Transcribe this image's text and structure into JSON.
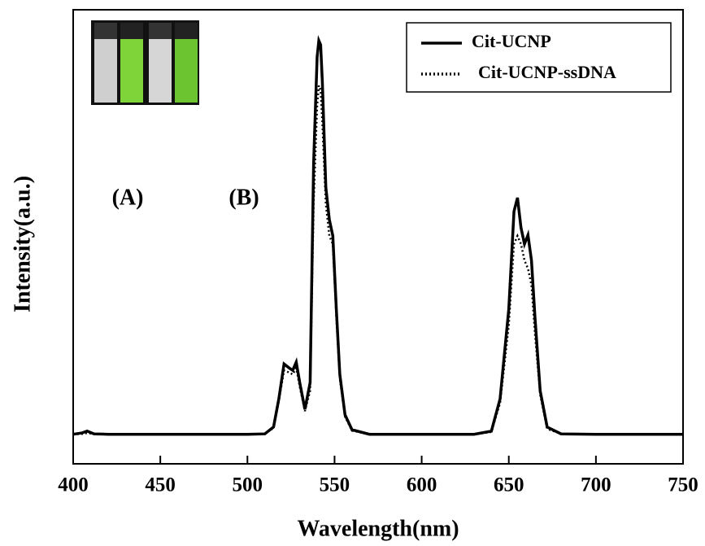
{
  "chart_data": {
    "type": "line",
    "x_label": "Wavelength(nm)",
    "y_label": "Intensity(a.u.)",
    "x": [
      400,
      405,
      408,
      412,
      420,
      450,
      500,
      510,
      515,
      518,
      521,
      524,
      526,
      528,
      530,
      533,
      536,
      538,
      540,
      541,
      542,
      543,
      545,
      547,
      549,
      551,
      553,
      556,
      560,
      570,
      600,
      630,
      640,
      645,
      650,
      653,
      655,
      657,
      659,
      661,
      663,
      665,
      668,
      672,
      680,
      700,
      750
    ],
    "series": [
      {
        "name": "Cit-UCNP",
        "color": "#000000",
        "dash": "solid",
        "values": [
          6.5,
          6.8,
          7.2,
          6.6,
          6.5,
          6.5,
          6.5,
          6.6,
          8.1,
          14.3,
          22.0,
          21.1,
          20.6,
          22.4,
          17.9,
          12.0,
          17.9,
          66.3,
          89.6,
          93.2,
          92.3,
          84.2,
          60.9,
          53.8,
          50.2,
          34.1,
          19.7,
          10.8,
          7.5,
          6.5,
          6.5,
          6.5,
          7.2,
          14.3,
          34.1,
          55.6,
          58.6,
          52.0,
          48.4,
          50.4,
          44.8,
          32.3,
          16.1,
          8.1,
          6.6,
          6.5,
          6.5
        ]
      },
      {
        "name": "Cit-UCNP-ssDNA",
        "color": "#000000",
        "dash": "dotted",
        "values": [
          6.5,
          6.6,
          6.8,
          6.6,
          6.5,
          6.5,
          6.5,
          6.6,
          7.9,
          13.8,
          20.6,
          20.1,
          19.7,
          21.1,
          17.0,
          11.6,
          16.1,
          57.3,
          78.9,
          83.3,
          82.3,
          75.3,
          57.3,
          50.2,
          48.4,
          32.3,
          18.8,
          10.4,
          7.3,
          6.5,
          6.5,
          6.5,
          7.0,
          13.4,
          30.5,
          48.4,
          50.2,
          48.4,
          44.8,
          43.0,
          39.4,
          28.7,
          15.2,
          7.7,
          6.6,
          6.5,
          6.5
        ]
      }
    ],
    "xlim": [
      400,
      750
    ],
    "xticks": [
      400,
      450,
      500,
      550,
      600,
      650,
      700,
      750
    ],
    "ylim": [
      0,
      100
    ],
    "legend": "upper right",
    "annotations": [
      "(A)",
      "(B)"
    ]
  }
}
